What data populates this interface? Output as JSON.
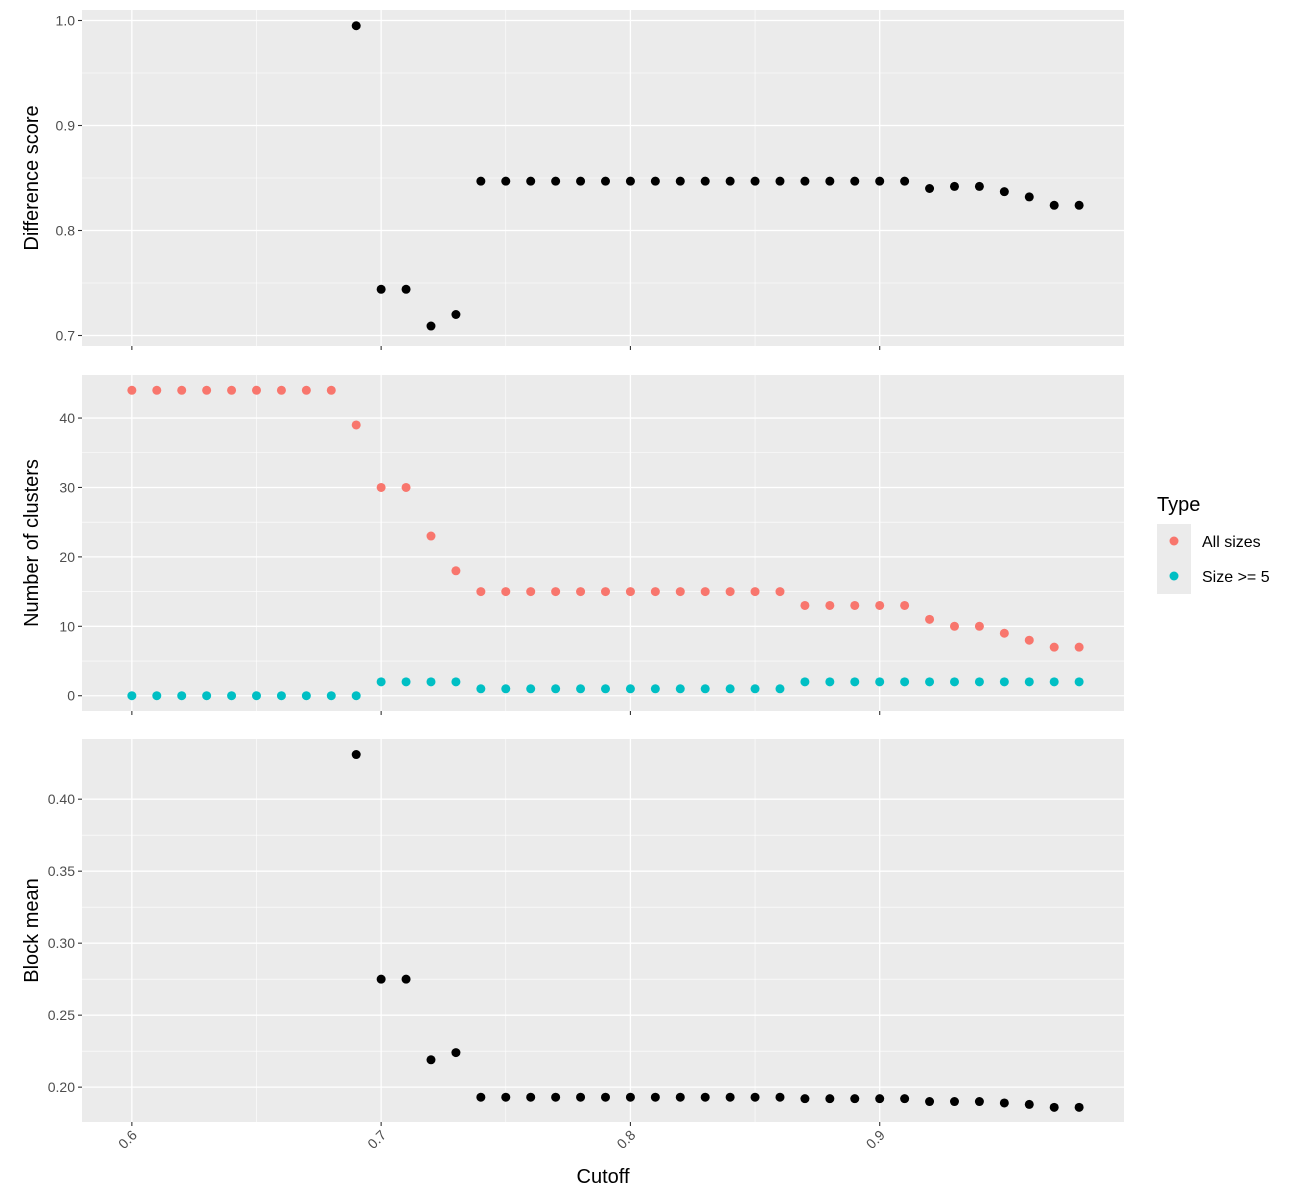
{
  "chart_data": {
    "type": "scatter",
    "xlabel": "Cutoff",
    "x_ticks": [
      "0.6",
      "0.7",
      "0.8",
      "0.9"
    ],
    "xlim": [
      0.58,
      0.998
    ],
    "legend": {
      "title": "Type",
      "placement": "right",
      "entries": [
        {
          "label": "All sizes",
          "color": "#F8766D"
        },
        {
          "label": "Size >= 5",
          "color": "#00BFC4"
        }
      ]
    },
    "panels": [
      {
        "ylabel": "Difference score",
        "ylim": [
          0.69,
          1.01
        ],
        "y_ticks": [
          0.7,
          0.8,
          0.9,
          1.0
        ],
        "y_tick_labels": [
          "0.7",
          "0.8",
          "0.9",
          "1.0"
        ],
        "series": [
          {
            "color": "#000000",
            "points": [
              [
                0.69,
                0.995
              ],
              [
                0.7,
                0.744
              ],
              [
                0.71,
                0.744
              ],
              [
                0.72,
                0.709
              ],
              [
                0.73,
                0.72
              ],
              [
                0.74,
                0.847
              ],
              [
                0.75,
                0.847
              ],
              [
                0.76,
                0.847
              ],
              [
                0.77,
                0.847
              ],
              [
                0.78,
                0.847
              ],
              [
                0.79,
                0.847
              ],
              [
                0.8,
                0.847
              ],
              [
                0.81,
                0.847
              ],
              [
                0.82,
                0.847
              ],
              [
                0.83,
                0.847
              ],
              [
                0.84,
                0.847
              ],
              [
                0.85,
                0.847
              ],
              [
                0.86,
                0.847
              ],
              [
                0.87,
                0.847
              ],
              [
                0.88,
                0.847
              ],
              [
                0.89,
                0.847
              ],
              [
                0.9,
                0.847
              ],
              [
                0.91,
                0.847
              ],
              [
                0.92,
                0.84
              ],
              [
                0.93,
                0.842
              ],
              [
                0.94,
                0.842
              ],
              [
                0.95,
                0.837
              ],
              [
                0.96,
                0.832
              ],
              [
                0.97,
                0.824
              ],
              [
                0.98,
                0.824
              ]
            ]
          }
        ]
      },
      {
        "ylabel": "Number of clusters",
        "ylim": [
          -2.2,
          46.2
        ],
        "y_ticks": [
          0,
          10,
          20,
          30,
          40
        ],
        "y_tick_labels": [
          "0",
          "10",
          "20",
          "30",
          "40"
        ],
        "series": [
          {
            "name": "All sizes",
            "color": "#F8766D",
            "points": [
              [
                0.6,
                44
              ],
              [
                0.61,
                44
              ],
              [
                0.62,
                44
              ],
              [
                0.63,
                44
              ],
              [
                0.64,
                44
              ],
              [
                0.65,
                44
              ],
              [
                0.66,
                44
              ],
              [
                0.67,
                44
              ],
              [
                0.68,
                44
              ],
              [
                0.69,
                39
              ],
              [
                0.7,
                30
              ],
              [
                0.71,
                30
              ],
              [
                0.72,
                23
              ],
              [
                0.73,
                18
              ],
              [
                0.74,
                15
              ],
              [
                0.75,
                15
              ],
              [
                0.76,
                15
              ],
              [
                0.77,
                15
              ],
              [
                0.78,
                15
              ],
              [
                0.79,
                15
              ],
              [
                0.8,
                15
              ],
              [
                0.81,
                15
              ],
              [
                0.82,
                15
              ],
              [
                0.83,
                15
              ],
              [
                0.84,
                15
              ],
              [
                0.85,
                15
              ],
              [
                0.86,
                15
              ],
              [
                0.87,
                13
              ],
              [
                0.88,
                13
              ],
              [
                0.89,
                13
              ],
              [
                0.9,
                13
              ],
              [
                0.91,
                13
              ],
              [
                0.92,
                11
              ],
              [
                0.93,
                10
              ],
              [
                0.94,
                10
              ],
              [
                0.95,
                9
              ],
              [
                0.96,
                8
              ],
              [
                0.97,
                7
              ],
              [
                0.98,
                7
              ]
            ]
          },
          {
            "name": "Size >= 5",
            "color": "#00BFC4",
            "points": [
              [
                0.6,
                0
              ],
              [
                0.61,
                0
              ],
              [
                0.62,
                0
              ],
              [
                0.63,
                0
              ],
              [
                0.64,
                0
              ],
              [
                0.65,
                0
              ],
              [
                0.66,
                0
              ],
              [
                0.67,
                0
              ],
              [
                0.68,
                0
              ],
              [
                0.69,
                0
              ],
              [
                0.7,
                2
              ],
              [
                0.71,
                2
              ],
              [
                0.72,
                2
              ],
              [
                0.73,
                2
              ],
              [
                0.74,
                1
              ],
              [
                0.75,
                1
              ],
              [
                0.76,
                1
              ],
              [
                0.77,
                1
              ],
              [
                0.78,
                1
              ],
              [
                0.79,
                1
              ],
              [
                0.8,
                1
              ],
              [
                0.81,
                1
              ],
              [
                0.82,
                1
              ],
              [
                0.83,
                1
              ],
              [
                0.84,
                1
              ],
              [
                0.85,
                1
              ],
              [
                0.86,
                1
              ],
              [
                0.87,
                2
              ],
              [
                0.88,
                2
              ],
              [
                0.89,
                2
              ],
              [
                0.9,
                2
              ],
              [
                0.91,
                2
              ],
              [
                0.92,
                2
              ],
              [
                0.93,
                2
              ],
              [
                0.94,
                2
              ],
              [
                0.95,
                2
              ],
              [
                0.96,
                2
              ],
              [
                0.97,
                2
              ],
              [
                0.98,
                2
              ]
            ]
          }
        ]
      },
      {
        "ylabel": "Block mean",
        "ylim": [
          0.1758,
          0.4418
        ],
        "y_ticks": [
          0.2,
          0.25,
          0.3,
          0.35,
          0.4
        ],
        "y_tick_labels": [
          "0.20",
          "0.25",
          "0.30",
          "0.35",
          "0.40"
        ],
        "series": [
          {
            "color": "#000000",
            "points": [
              [
                0.69,
                0.431
              ],
              [
                0.7,
                0.275
              ],
              [
                0.71,
                0.275
              ],
              [
                0.72,
                0.219
              ],
              [
                0.73,
                0.224
              ],
              [
                0.74,
                0.193
              ],
              [
                0.75,
                0.193
              ],
              [
                0.76,
                0.193
              ],
              [
                0.77,
                0.193
              ],
              [
                0.78,
                0.193
              ],
              [
                0.79,
                0.193
              ],
              [
                0.8,
                0.193
              ],
              [
                0.81,
                0.193
              ],
              [
                0.82,
                0.193
              ],
              [
                0.83,
                0.193
              ],
              [
                0.84,
                0.193
              ],
              [
                0.85,
                0.193
              ],
              [
                0.86,
                0.193
              ],
              [
                0.87,
                0.192
              ],
              [
                0.88,
                0.192
              ],
              [
                0.89,
                0.192
              ],
              [
                0.9,
                0.192
              ],
              [
                0.91,
                0.192
              ],
              [
                0.92,
                0.19
              ],
              [
                0.93,
                0.19
              ],
              [
                0.94,
                0.19
              ],
              [
                0.95,
                0.189
              ],
              [
                0.96,
                0.188
              ],
              [
                0.97,
                0.186
              ],
              [
                0.98,
                0.186
              ]
            ]
          }
        ]
      }
    ]
  }
}
